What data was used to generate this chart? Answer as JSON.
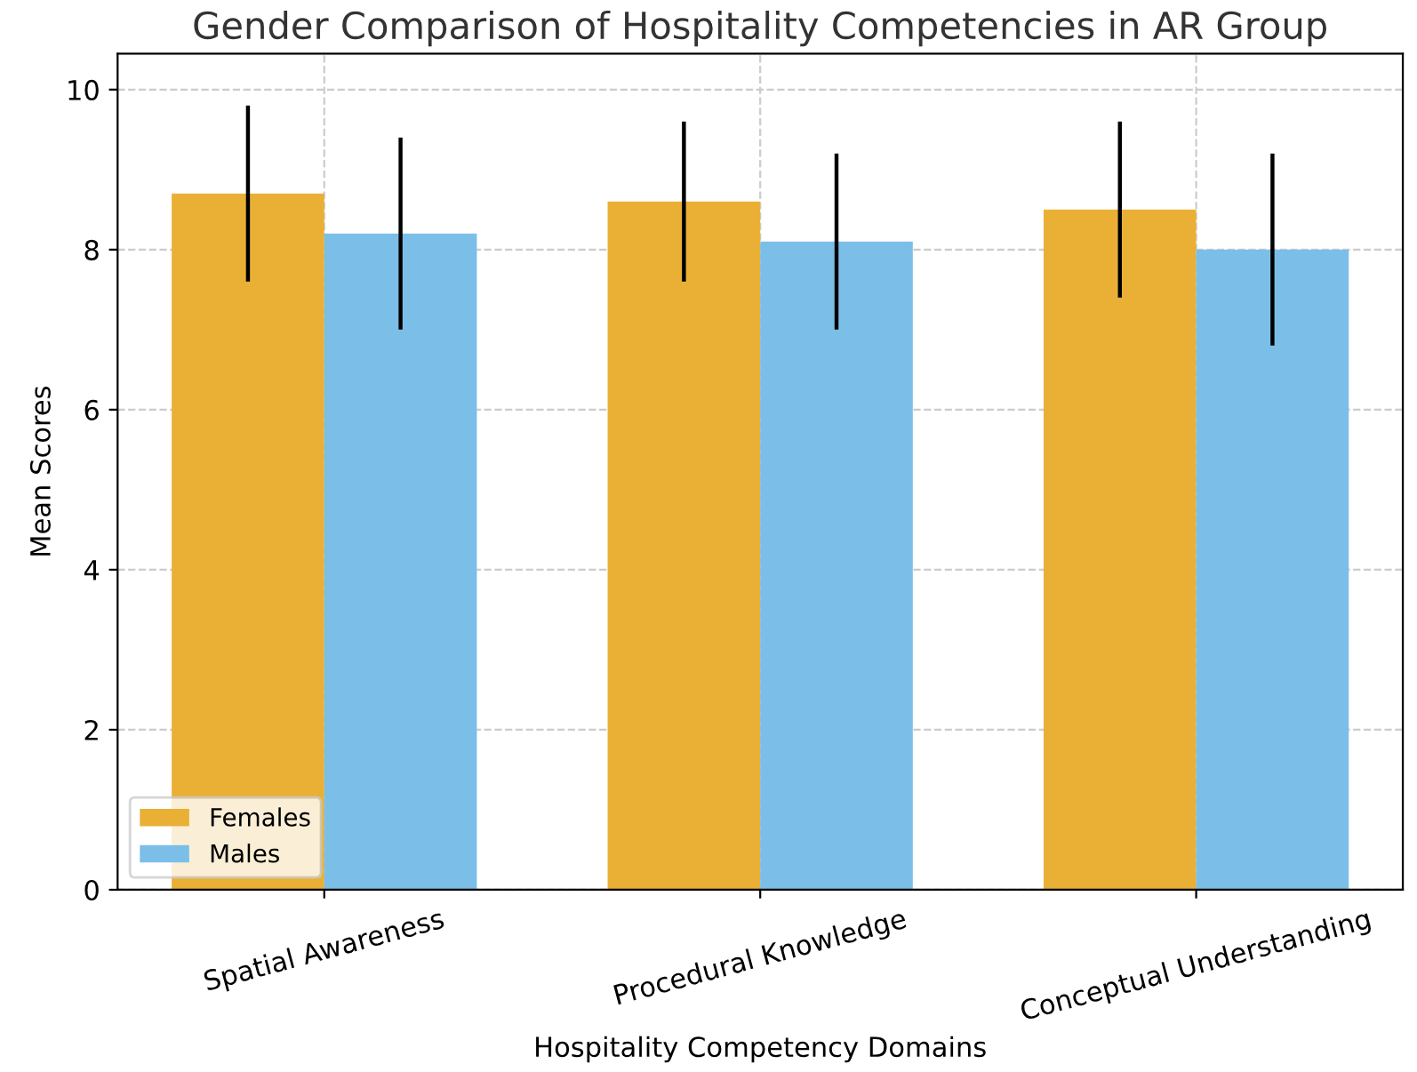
{
  "chart_data": {
    "type": "bar",
    "title": "Gender Comparison of Hospitality Competencies in AR Group",
    "xlabel": "Hospitality Competency Domains",
    "ylabel": "Mean Scores",
    "categories": [
      "Spatial Awareness",
      "Procedural Knowledge",
      "Conceptual Understanding"
    ],
    "series": [
      {
        "name": "Females",
        "color": "#e9b035",
        "values": [
          8.7,
          8.6,
          8.5
        ],
        "errors": [
          1.1,
          1.0,
          1.1
        ]
      },
      {
        "name": "Males",
        "color": "#7bbfe8",
        "values": [
          8.2,
          8.1,
          8.0
        ],
        "errors": [
          1.2,
          1.1,
          1.2
        ]
      }
    ],
    "ylim": [
      0,
      10.45
    ],
    "yticks": [
      0,
      2,
      4,
      6,
      8,
      10
    ],
    "grid": true,
    "legend": "bottom left"
  }
}
